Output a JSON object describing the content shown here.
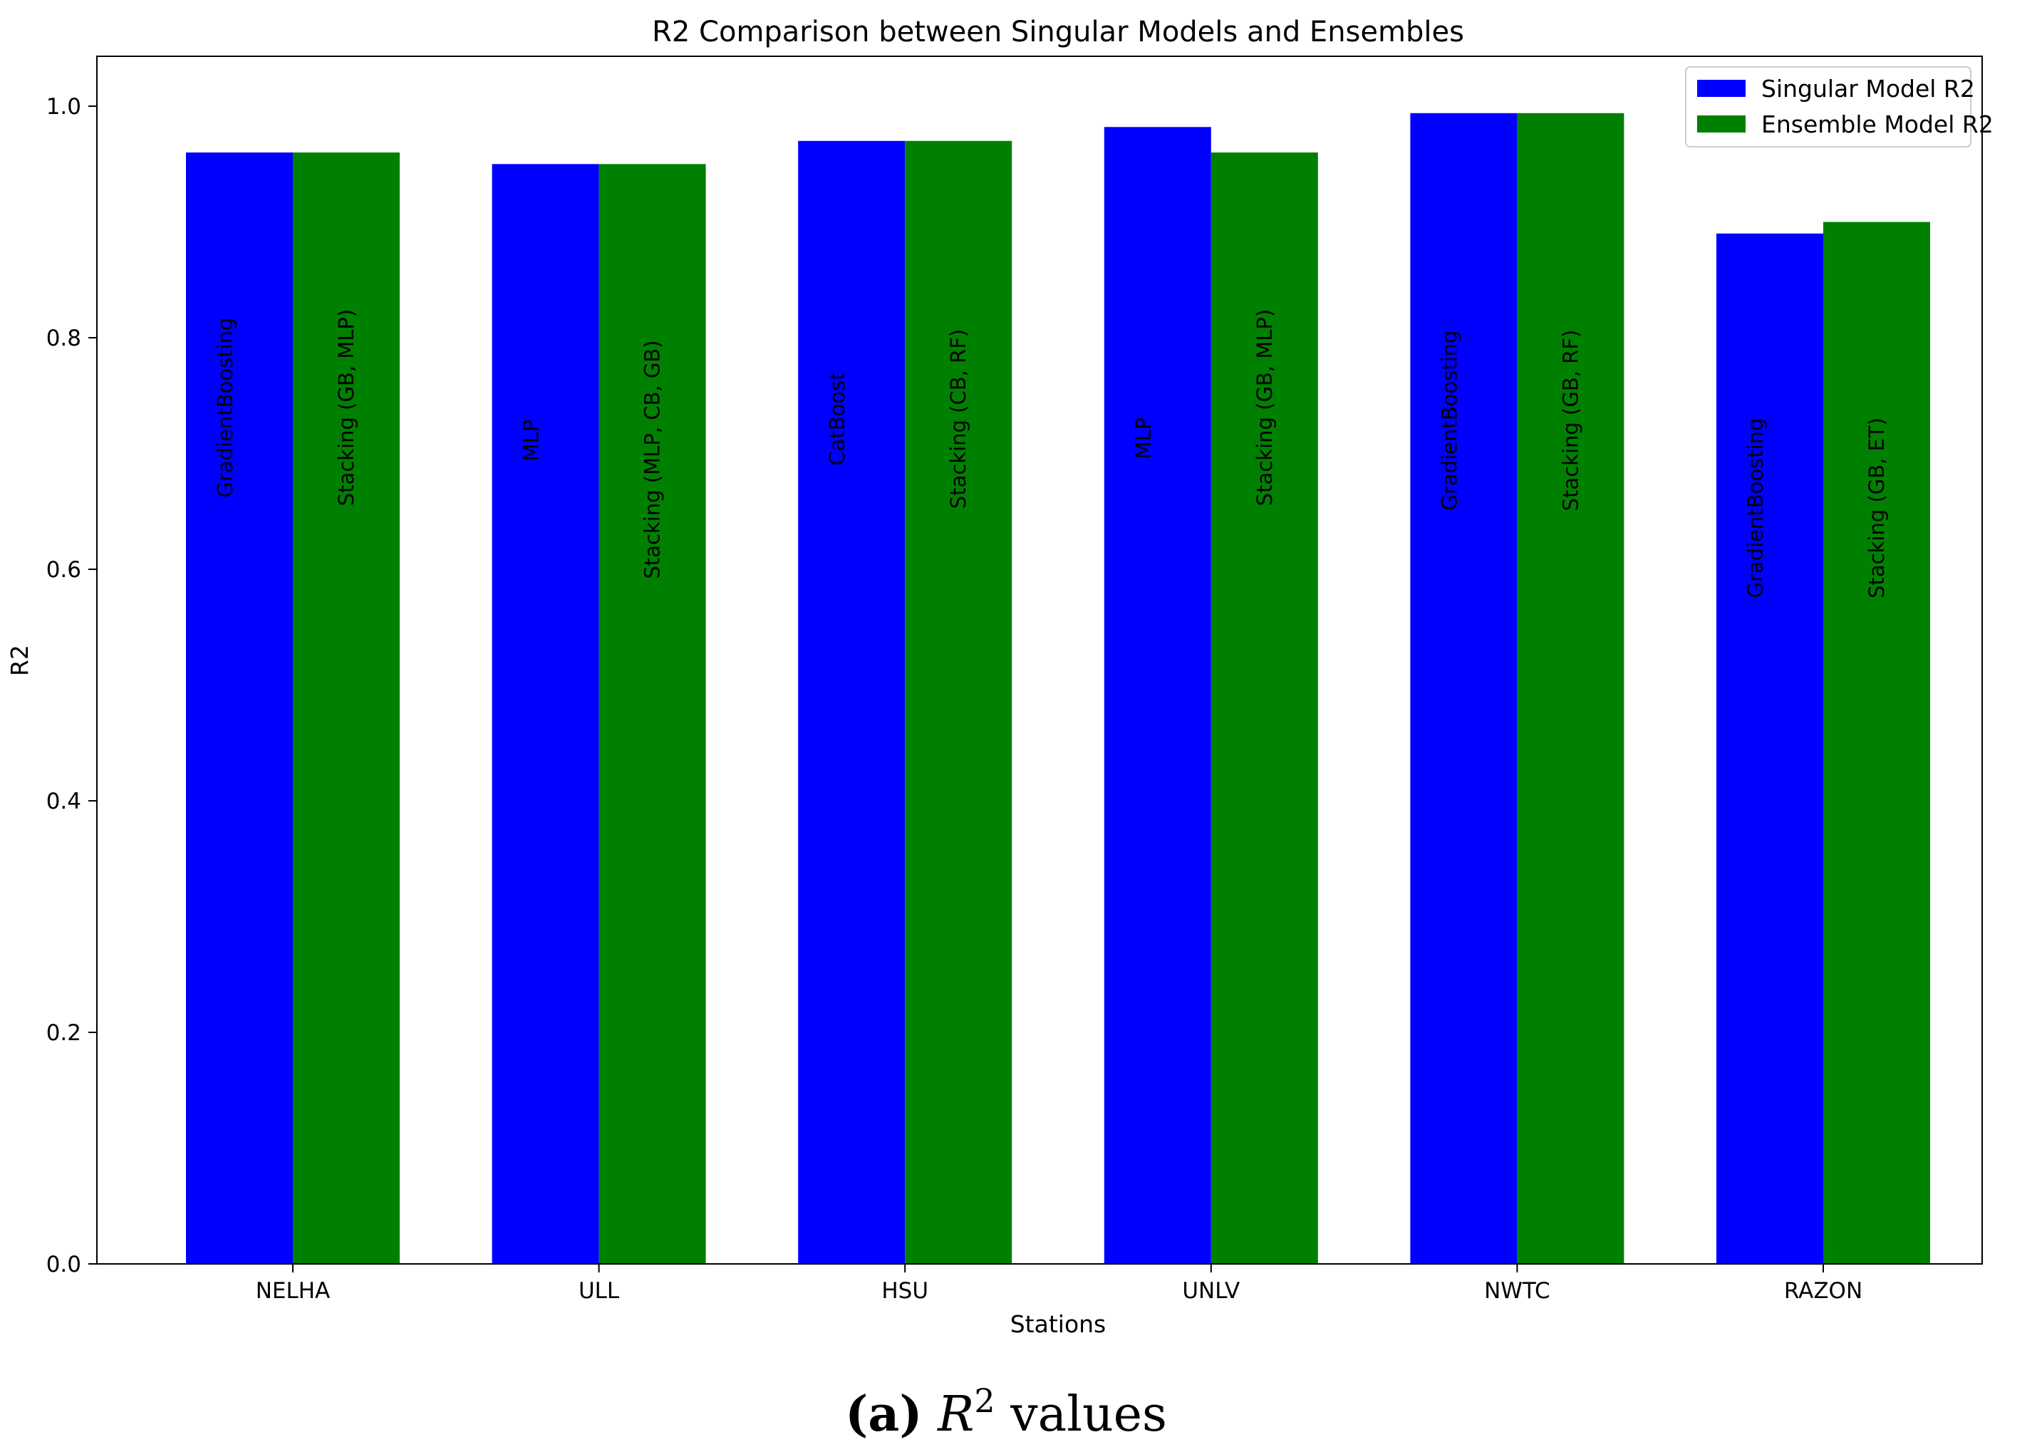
{
  "chart_data": {
    "type": "bar",
    "title": "R2 Comparison between Singular Models and Ensembles",
    "xlabel": "Stations",
    "ylabel": "R2",
    "categories": [
      "NELHA",
      "ULL",
      "HSU",
      "UNLV",
      "NWTC",
      "RAZON"
    ],
    "series": [
      {
        "name": "Singular Model R2",
        "color": "#0000ff",
        "values": [
          0.96,
          0.95,
          0.97,
          0.982,
          0.994,
          0.89
        ],
        "labels": [
          "GradientBoosting",
          "MLP",
          "CatBoost",
          "MLP",
          "GradientBoosting",
          "GradientBoosting"
        ]
      },
      {
        "name": "Ensemble Model R2",
        "color": "#008000",
        "values": [
          0.96,
          0.95,
          0.97,
          0.96,
          0.994,
          0.9
        ],
        "labels": [
          "Stacking (GB, MLP)",
          "Stacking (MLP, CB, GB)",
          "Stacking (CB, RF)",
          "Stacking (GB, MLP)",
          "Stacking (GB, RF)",
          "Stacking (GB, ET)"
        ]
      }
    ],
    "ylim": [
      0,
      1.0431
    ],
    "yticks": [
      "0.0",
      "0.2",
      "0.4",
      "0.6",
      "0.8",
      "1.0"
    ],
    "ytick_values": [
      0,
      0.2,
      0.4,
      0.6,
      0.8,
      1.0
    ],
    "grid": false,
    "legend_position": "top-right"
  },
  "caption": {
    "label": "(a)",
    "symbol": "R",
    "exponent": "2",
    "suffix": "values"
  }
}
